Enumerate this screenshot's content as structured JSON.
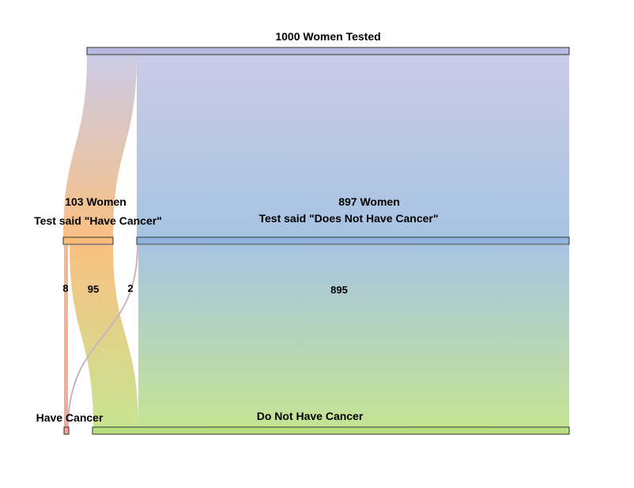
{
  "nodes": {
    "top": {
      "title": "1000 Women Tested",
      "color": "#b9b9df"
    },
    "pos": {
      "line1": "103 Women",
      "line2": "Test said \"Have Cancer\"",
      "color": "#f9bb77"
    },
    "neg": {
      "line1": "897 Women",
      "line2": "Test said \"Does Not Have Cancer\"",
      "color": "#8fb4dd"
    },
    "have": {
      "title": "Have Cancer",
      "color": "#f3a08f"
    },
    "not": {
      "title": "Do Not Have Cancer",
      "color": "#b8df7f"
    }
  },
  "flows": {
    "pos_have": "8",
    "pos_not": "95",
    "neg_have": "2",
    "neg_not": "895"
  }
}
